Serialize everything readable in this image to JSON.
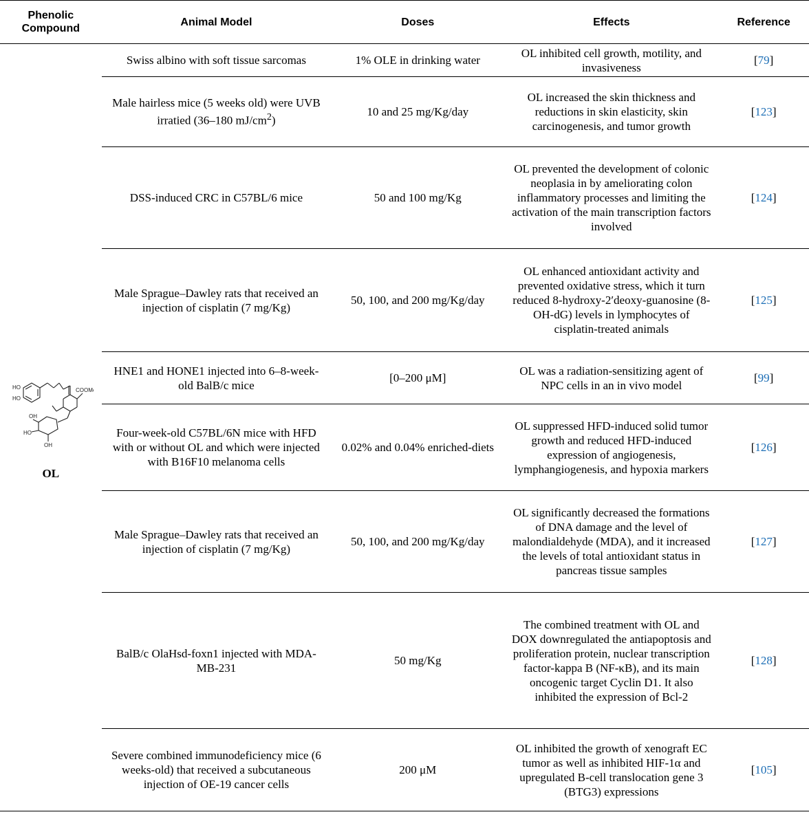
{
  "headers": {
    "compound": "Phenolic Compound",
    "model": "Animal Model",
    "doses": "Doses",
    "effects": "Effects",
    "reference": "Reference"
  },
  "compound": {
    "name": "OL",
    "structure_labels": {
      "ho1": "HO",
      "ho2": "HO",
      "oh1": "OH",
      "ho3": "HO",
      "oh2": "OH",
      "coome": "COOMe"
    }
  },
  "rows": [
    {
      "model": "Swiss albino with soft tissue sarcomas",
      "doses": "1% OLE in drinking water",
      "effects": "OL inhibited cell growth, motility, and invasiveness",
      "ref": "79"
    },
    {
      "model": "Male hairless mice (5 weeks old) were UVB irratied (36–180 mJ/cm",
      "model_sup": "2",
      "model_end": ")",
      "doses": "10 and 25 mg/Kg/day",
      "effects": "OL increased the skin thickness and reductions in skin elasticity, skin carcinogenesis, and tumor growth",
      "ref": "123"
    },
    {
      "model": "DSS-induced CRC in C57BL/6 mice",
      "doses": "50 and 100 mg/Kg",
      "effects": "OL prevented the development of colonic neoplasia in by ameliorating colon inflammatory processes and limiting the activation of the main transcription factors involved",
      "ref": "124"
    },
    {
      "model": "Male Sprague–Dawley rats that received an injection of cisplatin (7 mg/Kg)",
      "doses": "50, 100, and 200 mg/Kg/day",
      "effects": "OL enhanced antioxidant activity and prevented oxidative stress, which it turn reduced 8-hydroxy-2′deoxy-guanosine (8-OH-dG) levels in lymphocytes of cisplatin-treated animals",
      "ref": "125"
    },
    {
      "model": "HNE1 and HONE1 injected into 6–8-week-old BalB/c mice",
      "doses": "[0–200 μM]",
      "effects": "OL was a radiation-sensitizing agent of NPC cells in an in vivo model",
      "ref": "99"
    },
    {
      "model": "Four-week-old C57BL/6N mice with HFD with or without OL and which were injected with B16F10 melanoma cells",
      "doses": "0.02% and 0.04% enriched-diets",
      "effects": "OL suppressed HFD-induced solid tumor growth and reduced HFD-induced expression of angiogenesis, lymphangiogenesis, and hypoxia markers",
      "ref": "126"
    },
    {
      "model": "Male Sprague–Dawley rats that received an injection of cisplatin (7 mg/Kg)",
      "doses": "50, 100, and 200 mg/Kg/day",
      "effects": "OL significantly decreased the formations of DNA damage and the level of malondialdehyde (MDA), and it increased the levels of total antioxidant status in pancreas tissue samples",
      "ref": "127"
    },
    {
      "model": "BalB/c OlaHsd-foxn1 injected with MDA-MB-231",
      "doses": "50 mg/Kg",
      "effects": "The combined treatment with OL and DOX downregulated the antiapoptosis and proliferation protein, nuclear transcription factor-kappa B (NF-κB), and its main oncogenic target Cyclin D1. It also inhibited the expression of Bcl-2",
      "ref": "128"
    },
    {
      "model": "Severe combined immunodeficiency mice (6 weeks-old) that received a subcutaneous injection of OE-19 cancer cells",
      "doses": "200 μM",
      "effects": "OL inhibited the growth of xenograft EC tumor as well as inhibited HIF-1α and upregulated B-cell translocation gene 3 (BTG3) expressions",
      "ref": "105"
    }
  ]
}
